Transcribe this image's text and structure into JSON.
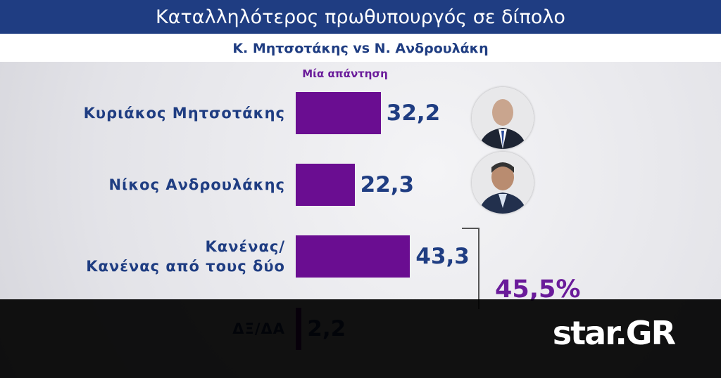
{
  "chart_data": {
    "type": "hbar",
    "title": "Καταλληλότερος πρωθυπουργός σε δίπολο",
    "subtitle": "Κ. Μητσοτάκης vs Ν. Ανδρουλάκη",
    "series_label": "Μία απάντηση",
    "categories": [
      "Κυριάκος Μητσοτάκης",
      "Νίκος Ανδρουλάκης",
      "Κανένας/\nΚανένας από τους δύο",
      "ΔΞ/ΔΑ"
    ],
    "values": [
      32.2,
      22.3,
      43.3,
      2.2
    ],
    "value_labels": [
      "32,2",
      "22,3",
      "43,3",
      "2,2"
    ],
    "color": "#6a0d91",
    "annotation": {
      "text": "45,5%",
      "value": 45.5
    }
  },
  "logo": "star.GR"
}
